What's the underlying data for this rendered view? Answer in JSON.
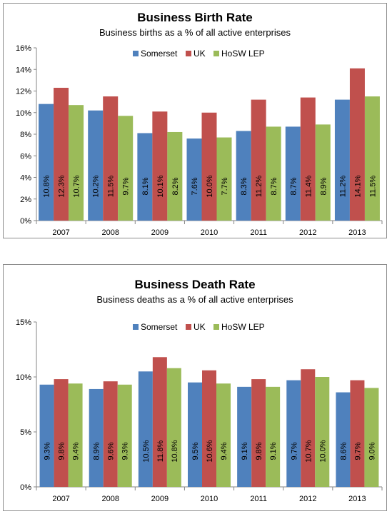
{
  "chart_data": [
    {
      "type": "bar",
      "title": "Business Birth Rate",
      "subtitle": "Business births as a % of all active enterprises",
      "categories": [
        "2007",
        "2008",
        "2009",
        "2010",
        "2011",
        "2012",
        "2013"
      ],
      "series": [
        {
          "name": "Somerset",
          "color": "#4f81bd",
          "values": [
            10.8,
            10.2,
            8.1,
            7.6,
            8.3,
            8.7,
            11.2
          ],
          "labels": [
            "10.8%",
            "10.2%",
            "8.1%",
            "7.6%",
            "8.3%",
            "8.7%",
            "11.2%"
          ]
        },
        {
          "name": "UK",
          "color": "#c0504d",
          "values": [
            12.3,
            11.5,
            10.1,
            10.0,
            11.2,
            11.4,
            14.1
          ],
          "labels": [
            "12.3%",
            "11.5%",
            "10.1%",
            "10.0%",
            "11.2%",
            "11.4%",
            "14.1%"
          ]
        },
        {
          "name": "HoSW LEP",
          "color": "#9bbb59",
          "values": [
            10.7,
            9.7,
            8.2,
            7.7,
            8.7,
            8.9,
            11.5
          ],
          "labels": [
            "10.7%",
            "9.7%",
            "8.2%",
            "7.7%",
            "8.7%",
            "8.9%",
            "11.5%"
          ]
        }
      ],
      "ylim": [
        0,
        16
      ],
      "yticks": [
        0,
        2,
        4,
        6,
        8,
        10,
        12,
        14,
        16
      ],
      "ytick_labels": [
        "0%",
        "2%",
        "4%",
        "6%",
        "8%",
        "10%",
        "12%",
        "14%",
        "16%"
      ],
      "grid": false,
      "legend": "top-center"
    },
    {
      "type": "bar",
      "title": "Business Death Rate",
      "subtitle": "Business deaths as a % of all active enterprises",
      "categories": [
        "2007",
        "2008",
        "2009",
        "2010",
        "2011",
        "2012",
        "2013"
      ],
      "series": [
        {
          "name": "Somerset",
          "color": "#4f81bd",
          "values": [
            9.3,
            8.9,
            10.5,
            9.5,
            9.1,
            9.7,
            8.6
          ],
          "labels": [
            "9.3%",
            "8.9%",
            "10.5%",
            "9.5%",
            "9.1%",
            "9.7%",
            "8.6%"
          ]
        },
        {
          "name": "UK",
          "color": "#c0504d",
          "values": [
            9.8,
            9.6,
            11.8,
            10.6,
            9.8,
            10.7,
            9.7
          ],
          "labels": [
            "9.8%",
            "9.6%",
            "11.8%",
            "10.6%",
            "9.8%",
            "10.7%",
            "9.7%"
          ]
        },
        {
          "name": "HoSW LEP",
          "color": "#9bbb59",
          "values": [
            9.4,
            9.3,
            10.8,
            9.4,
            9.1,
            10.0,
            9.0
          ],
          "labels": [
            "9.4%",
            "9.3%",
            "10.8%",
            "9.4%",
            "9.1%",
            "10.0%",
            "9.0%"
          ]
        }
      ],
      "ylim": [
        0,
        15
      ],
      "yticks": [
        0,
        5,
        10,
        15
      ],
      "ytick_labels": [
        "0%",
        "5%",
        "10%",
        "15%"
      ],
      "grid": false,
      "legend": "top-center"
    }
  ]
}
